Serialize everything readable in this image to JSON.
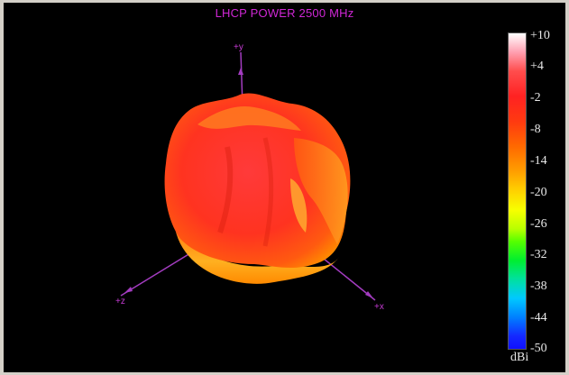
{
  "title": "LHCP POWER 2500  MHz",
  "axes": {
    "y_label": "+y",
    "x_label": "+x",
    "z_label": "+z"
  },
  "colorbar": {
    "ticks": [
      "+10",
      "+4",
      "-2",
      "-8",
      "-14",
      "-20",
      "-26",
      "-32",
      "-38",
      "-44",
      "-50"
    ],
    "unit": "dBi",
    "min": -50,
    "max": 10
  },
  "colors": {
    "title": "#d027d6",
    "axis": "#c53bd3",
    "background": "#000000"
  }
}
